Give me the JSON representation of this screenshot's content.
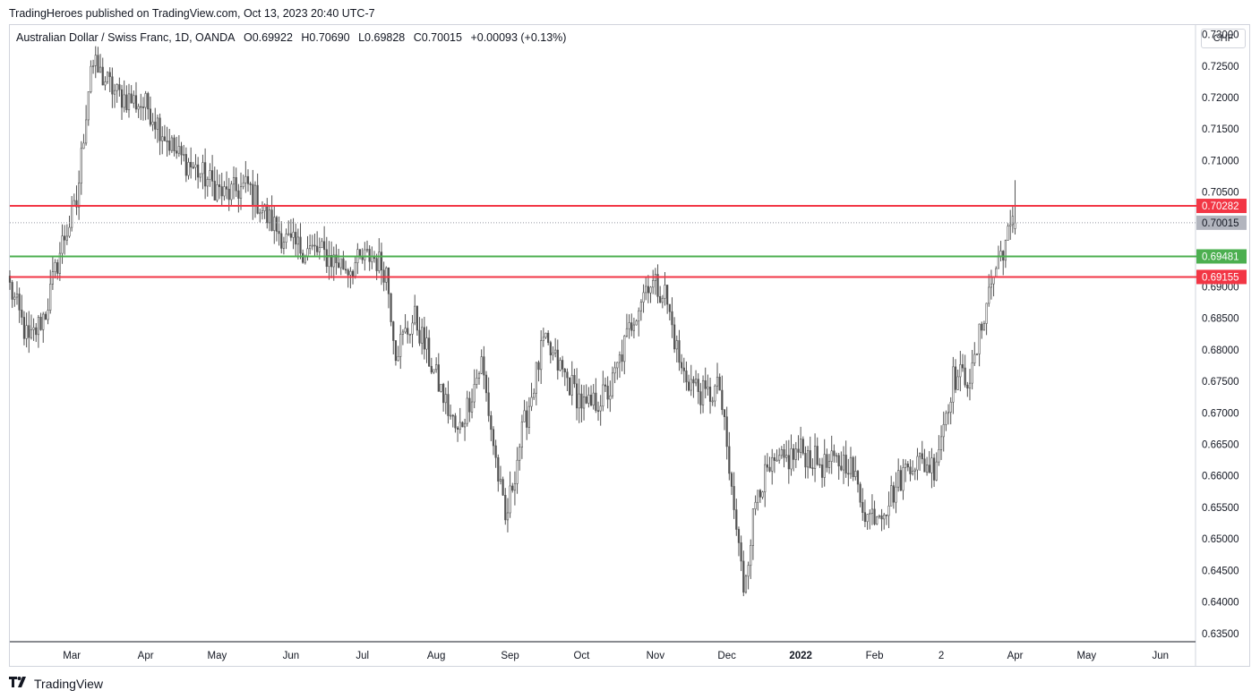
{
  "header": {
    "published": "TradingHeroes published on TradingView.com, Oct 13, 2023 20:40 UTC-7"
  },
  "legend": {
    "symbol": "Australian Dollar / Swiss Franc, 1D, OANDA",
    "open": "O0.69922",
    "high": "H0.70690",
    "low": "L0.69828",
    "close": "C0.70015",
    "change": "+0.00093 (+0.13%)"
  },
  "currency_button": "CHF",
  "footer": {
    "logo_icon": "tradingview-logo-icon",
    "brand": "TradingView"
  },
  "colors": {
    "up": "#ffffff",
    "down": "#525252",
    "wick": "#525252",
    "resistance": "#f23645",
    "support": "#4caf50",
    "last": "#b2b5be"
  },
  "chart_data": {
    "type": "candlestick",
    "symbol": "AUDCHF",
    "timeframe": "1D",
    "x_ticks": [
      {
        "label": "Mar",
        "t": 26
      },
      {
        "label": "Apr",
        "t": 57
      },
      {
        "label": "May",
        "t": 87
      },
      {
        "label": "Jun",
        "t": 118
      },
      {
        "label": "Jul",
        "t": 148
      },
      {
        "label": "Aug",
        "t": 179
      },
      {
        "label": "Sep",
        "t": 210
      },
      {
        "label": "Oct",
        "t": 240
      },
      {
        "label": "Nov",
        "t": 271
      },
      {
        "label": "Dec",
        "t": 301
      },
      {
        "label": "2022",
        "t": 332,
        "bold": true
      },
      {
        "label": "Feb",
        "t": 363
      },
      {
        "label": "2",
        "t": 391
      },
      {
        "label": "Apr",
        "t": 422
      },
      {
        "label": "May",
        "t": 452
      },
      {
        "label": "Jun",
        "t": 483
      }
    ],
    "xlim": [
      0,
      497
    ],
    "ylim": [
      0.6337,
      0.7315
    ],
    "y_ticks": [
      "0.73000",
      "0.72500",
      "0.72000",
      "0.71500",
      "0.71000",
      "0.70500",
      "0.70000",
      "0.69000",
      "0.68500",
      "0.68000",
      "0.67500",
      "0.67000",
      "0.66500",
      "0.66000",
      "0.65500",
      "0.65000",
      "0.64500",
      "0.64000",
      "0.63500"
    ],
    "key_points": [
      {
        "t": 0,
        "v": 0.69
      },
      {
        "t": 8,
        "v": 0.681
      },
      {
        "t": 15,
        "v": 0.686
      },
      {
        "t": 22,
        "v": 0.697
      },
      {
        "t": 28,
        "v": 0.703
      },
      {
        "t": 34,
        "v": 0.7255
      },
      {
        "t": 45,
        "v": 0.7205
      },
      {
        "t": 58,
        "v": 0.7185
      },
      {
        "t": 70,
        "v": 0.711
      },
      {
        "t": 80,
        "v": 0.708
      },
      {
        "t": 90,
        "v": 0.7045
      },
      {
        "t": 100,
        "v": 0.706
      },
      {
        "t": 108,
        "v": 0.701
      },
      {
        "t": 118,
        "v": 0.6965
      },
      {
        "t": 130,
        "v": 0.6955
      },
      {
        "t": 142,
        "v": 0.693
      },
      {
        "t": 152,
        "v": 0.695
      },
      {
        "t": 158,
        "v": 0.6925
      },
      {
        "t": 162,
        "v": 0.68
      },
      {
        "t": 170,
        "v": 0.685
      },
      {
        "t": 178,
        "v": 0.6765
      },
      {
        "t": 188,
        "v": 0.6665
      },
      {
        "t": 198,
        "v": 0.678
      },
      {
        "t": 204,
        "v": 0.6625
      },
      {
        "t": 208,
        "v": 0.6525
      },
      {
        "t": 214,
        "v": 0.665
      },
      {
        "t": 224,
        "v": 0.681
      },
      {
        "t": 232,
        "v": 0.6765
      },
      {
        "t": 242,
        "v": 0.6705
      },
      {
        "t": 252,
        "v": 0.6735
      },
      {
        "t": 262,
        "v": 0.6855
      },
      {
        "t": 268,
        "v": 0.691
      },
      {
        "t": 275,
        "v": 0.689
      },
      {
        "t": 282,
        "v": 0.6765
      },
      {
        "t": 292,
        "v": 0.6725
      },
      {
        "t": 298,
        "v": 0.674
      },
      {
        "t": 302,
        "v": 0.6605
      },
      {
        "t": 308,
        "v": 0.6425
      },
      {
        "t": 314,
        "v": 0.6585
      },
      {
        "t": 322,
        "v": 0.6615
      },
      {
        "t": 332,
        "v": 0.664
      },
      {
        "t": 342,
        "v": 0.6615
      },
      {
        "t": 352,
        "v": 0.6625
      },
      {
        "t": 360,
        "v": 0.6535
      },
      {
        "t": 368,
        "v": 0.6555
      },
      {
        "t": 378,
        "v": 0.6625
      },
      {
        "t": 388,
        "v": 0.6615
      },
      {
        "t": 396,
        "v": 0.6755
      },
      {
        "t": 404,
        "v": 0.676
      },
      {
        "t": 410,
        "v": 0.688
      },
      {
        "t": 416,
        "v": 0.6955
      },
      {
        "t": 422,
        "v": 0.7003
      }
    ],
    "horizontal_levels": [
      {
        "value": 0.70282,
        "label": "0.70282",
        "role": "resistance"
      },
      {
        "value": 0.69481,
        "label": "0.69481",
        "role": "support"
      },
      {
        "value": 0.69155,
        "label": "0.69155",
        "role": "resistance"
      }
    ],
    "last_price": {
      "value": 0.70015,
      "label": "0.70015"
    }
  }
}
